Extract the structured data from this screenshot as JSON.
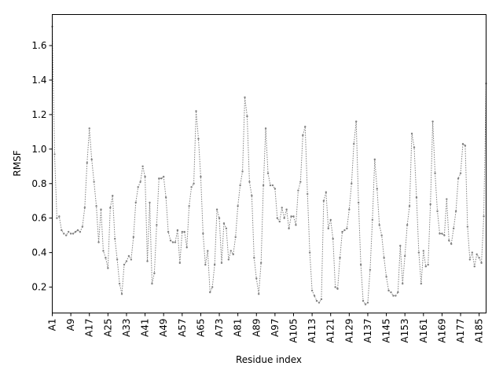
{
  "chart_data": {
    "type": "line",
    "title": "",
    "xlabel": "Residue index",
    "ylabel": "RMSF",
    "ylim": [
      0.05,
      1.78
    ],
    "yticks": [
      0.2,
      0.4,
      0.6,
      0.8,
      1.0,
      1.2,
      1.4,
      1.6
    ],
    "ytick_labels": [
      "0.2",
      "0.4",
      "0.6",
      "0.8",
      "1.0",
      "1.2",
      "1.4",
      "1.6"
    ],
    "xtick_labels": [
      "A1",
      "A9",
      "A17",
      "A25",
      "A33",
      "A41",
      "A49",
      "A57",
      "A65",
      "A73",
      "A81",
      "A89",
      "A97",
      "A105",
      "A113",
      "A121",
      "A129",
      "A137",
      "A145",
      "A153",
      "A161",
      "A169",
      "A177",
      "A185"
    ],
    "grid": false,
    "series_color": "#808080",
    "series": [
      {
        "line_style": "dotted",
        "x_start": 1,
        "values": [
          1.71,
          0.97,
          0.6,
          0.61,
          0.53,
          0.51,
          0.5,
          0.52,
          0.51,
          0.51,
          0.52,
          0.53,
          0.52,
          0.55,
          0.66,
          0.92,
          1.12,
          0.94,
          0.81,
          0.67,
          0.46,
          0.65,
          0.41,
          0.37,
          0.31,
          0.66,
          0.73,
          0.48,
          0.36,
          0.22,
          0.16,
          0.33,
          0.35,
          0.38,
          0.36,
          0.49,
          0.69,
          0.78,
          0.81,
          0.9,
          0.84,
          0.35,
          0.69,
          0.22,
          0.28,
          0.56,
          0.83,
          0.83,
          0.84,
          0.72,
          0.52,
          0.47,
          0.46,
          0.46,
          0.53,
          0.34,
          0.52,
          0.52,
          0.43,
          0.67,
          0.78,
          0.8,
          1.22,
          1.06,
          0.84,
          0.51,
          0.33,
          0.41,
          0.17,
          0.2,
          0.33,
          0.65,
          0.6,
          0.34,
          0.57,
          0.54,
          0.36,
          0.41,
          0.39,
          0.49,
          0.67,
          0.79,
          0.87,
          1.3,
          1.19,
          0.81,
          0.73,
          0.37,
          0.25,
          0.16,
          0.34,
          0.79,
          1.12,
          0.86,
          0.79,
          0.79,
          0.77,
          0.6,
          0.58,
          0.66,
          0.6,
          0.65,
          0.54,
          0.61,
          0.61,
          0.56,
          0.76,
          0.81,
          1.08,
          1.13,
          0.74,
          0.4,
          0.18,
          0.15,
          0.12,
          0.11,
          0.13,
          0.7,
          0.75,
          0.54,
          0.59,
          0.48,
          0.2,
          0.19,
          0.37,
          0.52,
          0.53,
          0.54,
          0.65,
          0.8,
          1.03,
          1.16,
          0.69,
          0.33,
          0.12,
          0.1,
          0.11,
          0.3,
          0.59,
          0.94,
          0.77,
          0.56,
          0.5,
          0.37,
          0.26,
          0.18,
          0.17,
          0.15,
          0.15,
          0.17,
          0.44,
          0.22,
          0.38,
          0.56,
          0.67,
          1.09,
          1.01,
          0.72,
          0.4,
          0.22,
          0.41,
          0.32,
          0.33,
          0.68,
          1.16,
          0.86,
          0.64,
          0.51,
          0.51,
          0.5,
          0.71,
          0.47,
          0.45,
          0.54,
          0.64,
          0.83,
          0.86,
          1.03,
          1.02,
          0.55,
          0.36,
          0.4,
          0.32,
          0.39,
          0.37,
          0.34,
          0.61,
          1.38
        ]
      }
    ]
  }
}
